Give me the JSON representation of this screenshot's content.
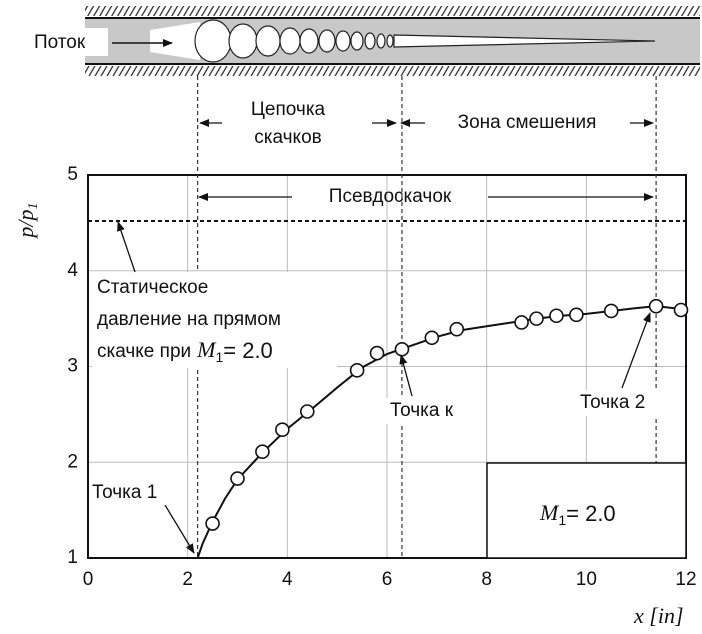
{
  "diagram": {
    "flow_label": "Поток",
    "shock_train": [
      "Цепочка",
      "скачков"
    ],
    "mixing_zone": "Зона смешения"
  },
  "chart_data": {
    "type": "line",
    "xlabel": "x [in]",
    "ylabel": {
      "main": "p/p",
      "sub": "1"
    },
    "xlim": [
      0,
      12
    ],
    "ylim": [
      1,
      5
    ],
    "xticks": [
      0,
      2,
      4,
      6,
      8,
      10,
      12
    ],
    "yticks": [
      1,
      2,
      3,
      4,
      5
    ],
    "grid": true,
    "reference_line": {
      "value": 4.52,
      "style": "dashed"
    },
    "markers_x": [
      2.2,
      6.3,
      11.4
    ],
    "mach": {
      "symbol": "M",
      "subscript": "1",
      "rest": "= 2.0"
    },
    "annotations": {
      "pseudo_shock": "Псевдоскачок",
      "reference": [
        "Статическое",
        "давление на прямом",
        "скачке при"
      ],
      "point_1": "Точка 1",
      "point_k": "Точка к",
      "point_2": "Точка 2"
    },
    "series": [
      {
        "color": "#111111",
        "style": "line",
        "x": [
          2.2,
          2.3,
          2.5,
          2.75,
          3.0,
          3.5,
          4.0,
          4.5,
          5.0,
          5.5,
          6.0,
          6.5,
          7.0,
          7.5,
          8.0,
          8.5,
          9.0,
          9.5,
          10.0,
          10.5,
          11.0,
          11.4,
          11.9
        ],
        "values": [
          1.0,
          1.15,
          1.38,
          1.62,
          1.82,
          2.1,
          2.35,
          2.56,
          2.78,
          2.99,
          3.13,
          3.22,
          3.31,
          3.38,
          3.42,
          3.46,
          3.5,
          3.53,
          3.55,
          3.58,
          3.61,
          3.63,
          3.6
        ]
      },
      {
        "color": "#111111",
        "style": "marker",
        "x": [
          2.5,
          3.0,
          3.5,
          3.9,
          4.4,
          5.4,
          5.8,
          6.3,
          6.9,
          7.4,
          8.7,
          9.0,
          9.4,
          9.8,
          10.5,
          11.4,
          11.9
        ],
        "values": [
          1.36,
          1.83,
          2.11,
          2.34,
          2.53,
          2.96,
          3.14,
          3.18,
          3.3,
          3.39,
          3.46,
          3.5,
          3.53,
          3.54,
          3.58,
          3.63,
          3.59
        ]
      }
    ]
  }
}
